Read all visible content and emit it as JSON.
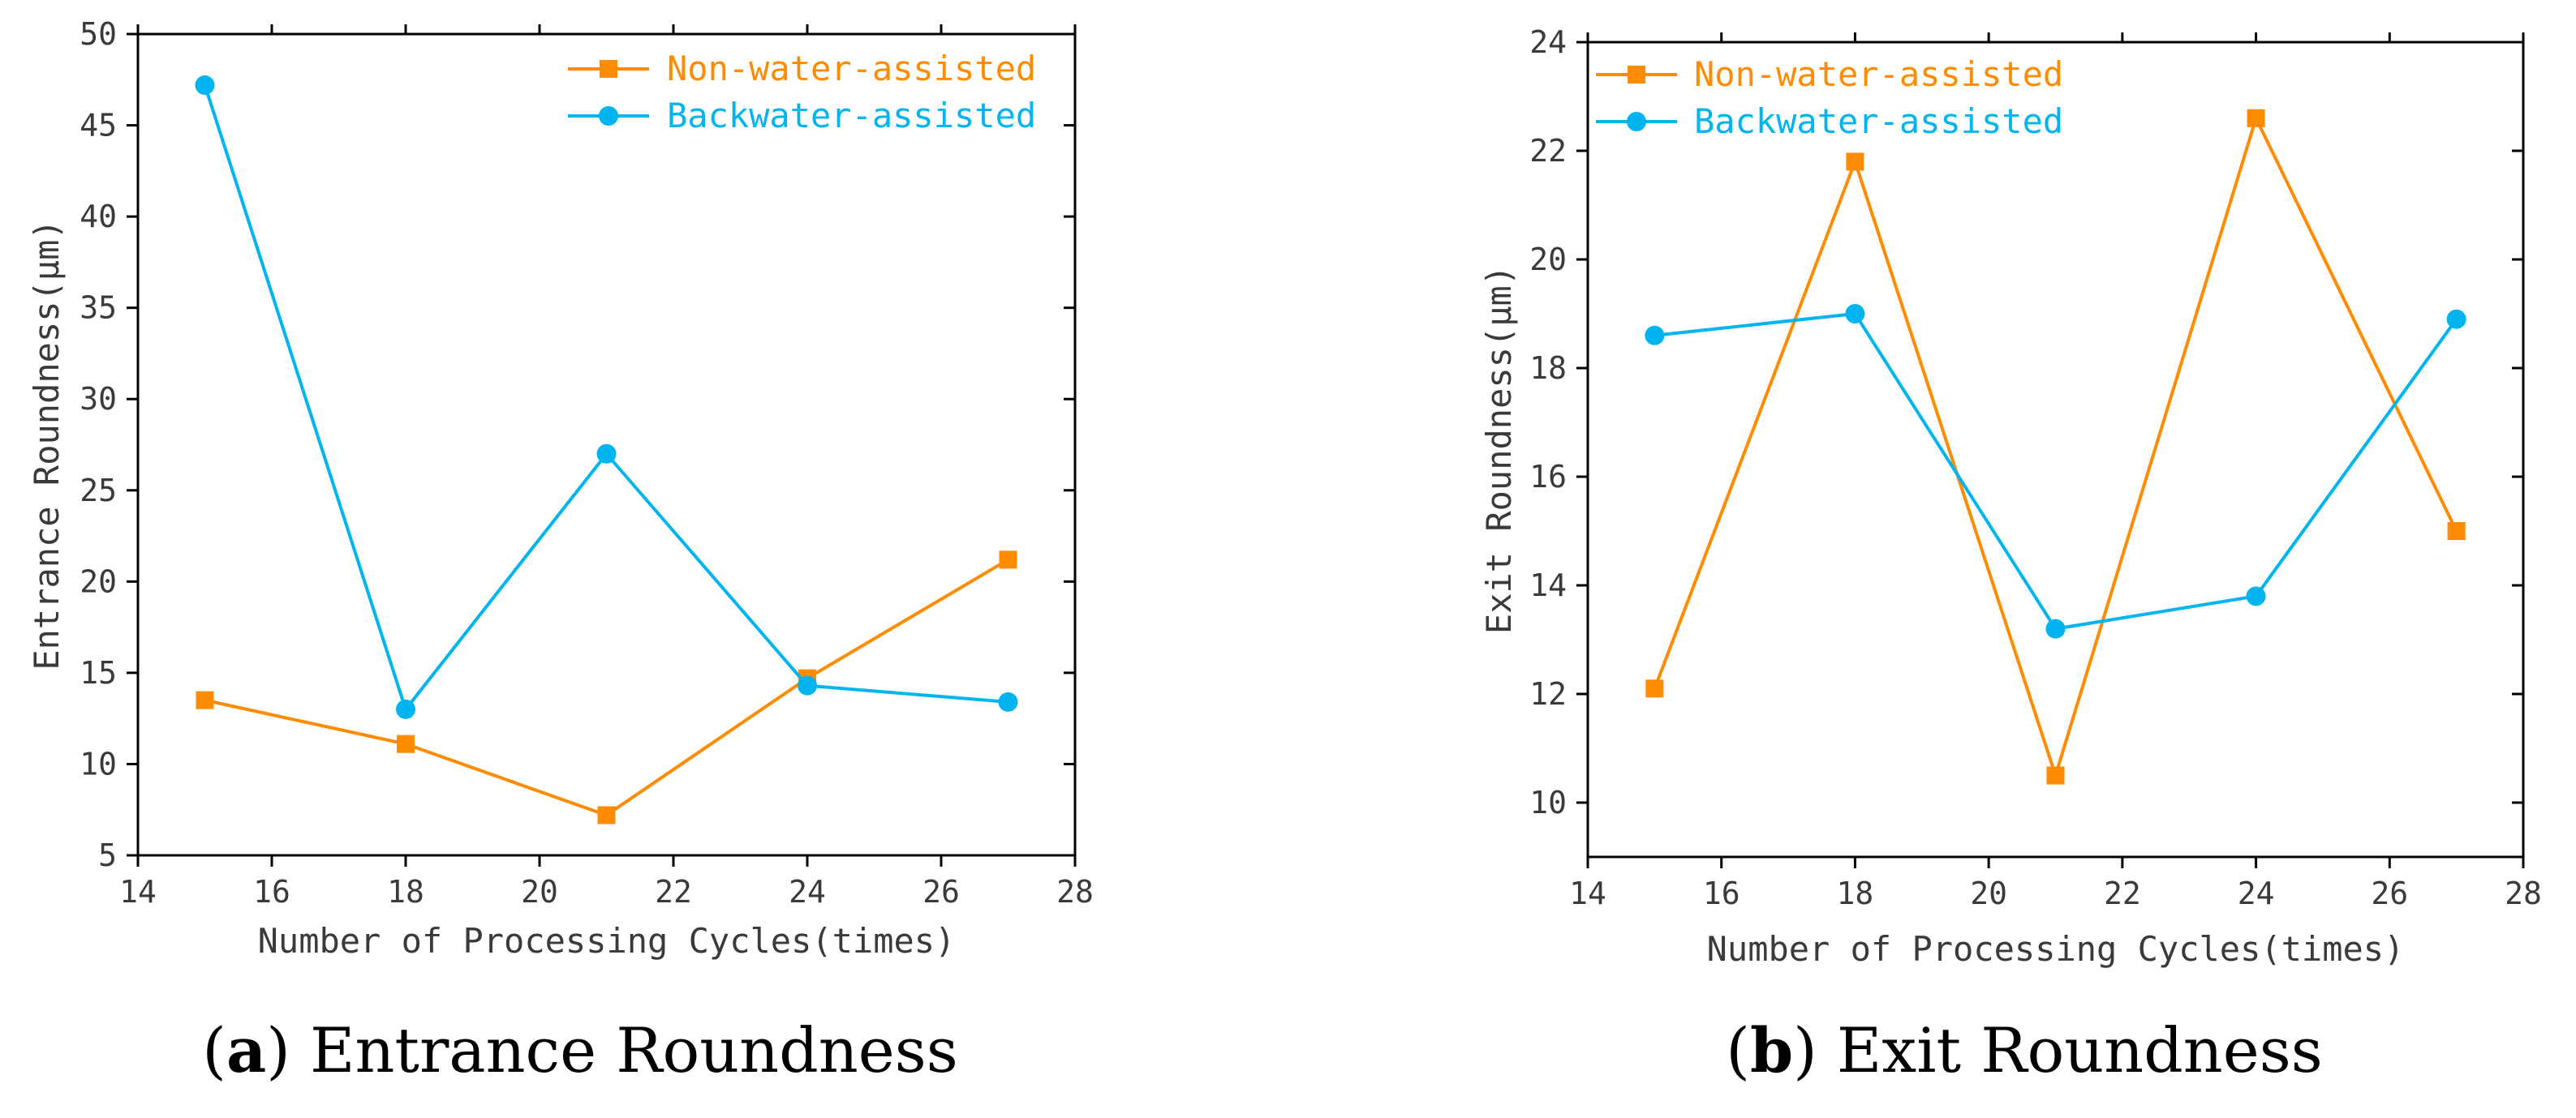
{
  "chart_data": [
    {
      "type": "line",
      "panel": "a",
      "caption": {
        "prefix": "(",
        "letter": "a",
        "suffix": ") Entrance Roundness"
      },
      "xlabel": "Number of Processing Cycles(times)",
      "ylabel": "Entrance Roundness(μm)",
      "xlim": [
        14,
        28
      ],
      "ylim": [
        5,
        50
      ],
      "xticks": [
        14,
        16,
        18,
        20,
        22,
        24,
        26,
        28
      ],
      "yticks": [
        5,
        10,
        15,
        20,
        25,
        30,
        35,
        40,
        45,
        50
      ],
      "legend_position": "top-right",
      "grid": false,
      "x": [
        15,
        18,
        21,
        24,
        27
      ],
      "series": [
        {
          "name": "Non-water-assisted",
          "color": "#FF8C00",
          "marker": "square",
          "values": [
            13.5,
            11.1,
            7.2,
            14.7,
            21.2
          ]
        },
        {
          "name": "Backwater-assisted",
          "color": "#00B4F0",
          "marker": "circle",
          "values": [
            47.2,
            13.0,
            27.0,
            14.3,
            13.4
          ]
        }
      ]
    },
    {
      "type": "line",
      "panel": "b",
      "caption": {
        "prefix": "(",
        "letter": "b",
        "suffix": ") Exit Roundness"
      },
      "xlabel": "Number of Processing Cycles(times)",
      "ylabel": "Exit Roundness(μm)",
      "xlim": [
        14,
        28
      ],
      "ylim": [
        9,
        24
      ],
      "xticks": [
        14,
        16,
        18,
        20,
        22,
        24,
        26,
        28
      ],
      "yticks": [
        10,
        12,
        14,
        16,
        18,
        20,
        22,
        24
      ],
      "legend_position": "top-left",
      "grid": false,
      "x": [
        15,
        18,
        21,
        24,
        27
      ],
      "series": [
        {
          "name": "Non-water-assisted",
          "color": "#FF8C00",
          "marker": "square",
          "values": [
            12.1,
            21.8,
            10.5,
            22.6,
            15.0
          ]
        },
        {
          "name": "Backwater-assisted",
          "color": "#00B4F0",
          "marker": "circle",
          "values": [
            18.6,
            19.0,
            13.2,
            13.8,
            18.9
          ]
        }
      ]
    }
  ]
}
